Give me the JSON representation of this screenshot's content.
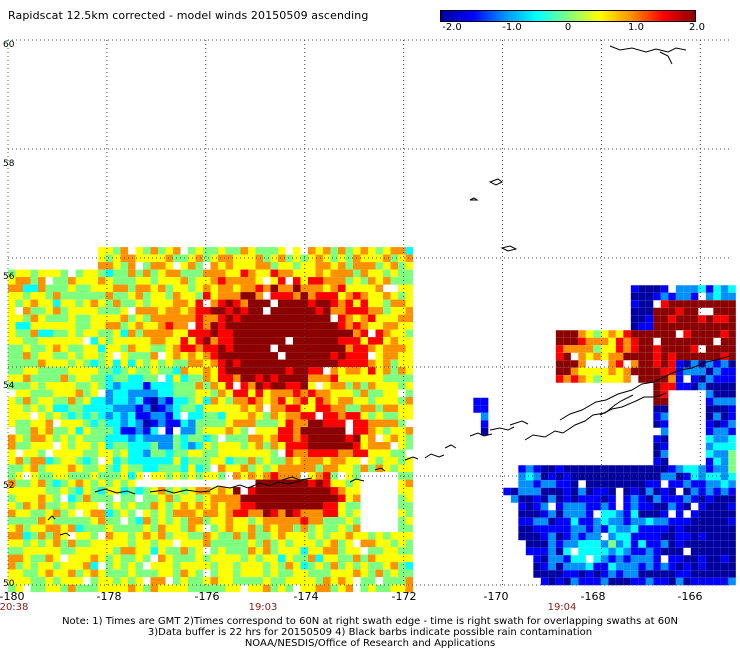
{
  "title": "Rapidscat 12.5km corrected - model winds 20150509 ascending",
  "colorbar": {
    "labels": [
      "-2.0",
      "-1.0",
      "0",
      "1.0",
      "2.0"
    ],
    "colors": [
      "#0000a0",
      "#0000ff",
      "#0090ff",
      "#00ffff",
      "#7fff7f",
      "#ffff00",
      "#ff9000",
      "#ff0000",
      "#8b0000"
    ]
  },
  "axes": {
    "lon_labels": [
      "-180",
      "-178",
      "-176",
      "-174",
      "-172",
      "-170",
      "-168",
      "-166"
    ],
    "lat_labels": [
      "60",
      "58",
      "56",
      "54",
      "52",
      "50"
    ]
  },
  "times": [
    "20:38",
    "19:03",
    "19:04"
  ],
  "notes": [
    "Note: 1) Times are GMT 2)Times correspond to 60N at right swath edge - time is right swath for overlapping swaths at 60N",
    "3)Data buffer is 22 hrs for 20150509 4) Black barbs indicate possible rain contamination",
    "NOAA/NESDIS/Office of Research and Applications"
  ]
}
